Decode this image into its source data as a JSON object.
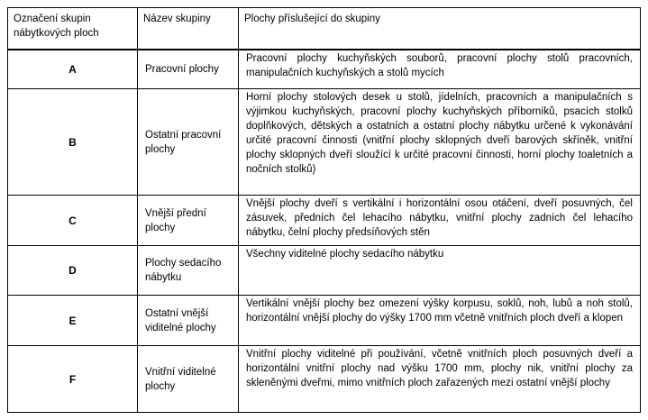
{
  "table": {
    "headers": [
      "Označení skupin nábytkových ploch",
      "Název skupiny",
      "Plochy příslušející do skupiny"
    ],
    "rows": [
      {
        "code": "A",
        "name": "Pracovní plochy",
        "description": "Pracovní plochy kuchyňských souborů, pracovní plochy stolů pracovních, manipulačních kuchyňských a stolů mycích"
      },
      {
        "code": "B",
        "name": "Ostatní pracovní plochy",
        "description": "Horní plochy stolových desek u stolů, jídelních, pracovních a manipulačních s výjimkou kuchyňských, pracovní plochy kuchyňských příborníků, psacích stolků doplňkových, dětských a ostatních a ostatní plochy nábytku určené k vykonávání určité pracovní činnosti (vnitřní plochy sklopných dveří barových skříněk, vnitřní plochy sklopných dveří sloužící k určité pracovní činnosti, horní plochy toaletních a nočních stolků)"
      },
      {
        "code": "C",
        "name": "Vnější přední plochy",
        "description": "Vnější plochy dveří s vertikální i horizontální osou otáčení, dveří posuvných, čel zásuvek, předních čel lehacího nábytku, vnitřní plochy zadních čel lehacího nábytku, čelní plochy předsíňových stěn"
      },
      {
        "code": "D",
        "name": "Plochy sedacího nábytku",
        "description": "Všechny viditelné plochy sedacího nábytku"
      },
      {
        "code": "E",
        "name": "Ostatní vnější viditelné plochy",
        "description": "Vertikální vnější plochy bez omezení výšky korpusu, soklů, noh, lubů a noh stolů, horizontální vnější plochy do výšky 1700 mm včetně vnitřních ploch dveří a klopen"
      },
      {
        "code": "F",
        "name": "Vnitřní viditelné plochy",
        "description": "Vnitřní plochy viditelné při používání, včetně vnitřních ploch posuvných dveří a horizontální vnitřní plochy nad výšku 1700 mm, plochy nik, vnitřní plochy za skleněnými dveřmi, mimo vnitřních ploch zařazených mezi ostatní vnější plochy"
      }
    ]
  }
}
